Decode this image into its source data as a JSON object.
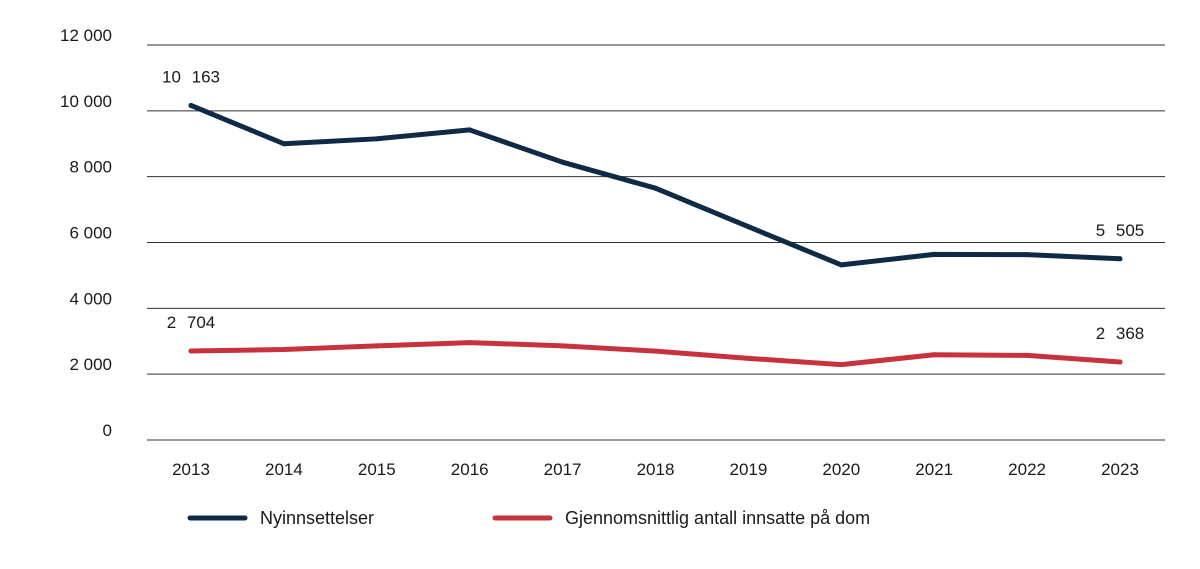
{
  "chart_data": {
    "type": "line",
    "title": "",
    "xlabel": "",
    "ylabel": "",
    "ylim": [
      0,
      12000
    ],
    "yticks": [
      0,
      2000,
      4000,
      6000,
      8000,
      10000,
      12000
    ],
    "ytick_labels": [
      "0",
      "2 000",
      "4 000",
      "6 000",
      "8 000",
      "10 000",
      "12 000"
    ],
    "grid": true,
    "categories": [
      "2013",
      "2014",
      "2015",
      "2016",
      "2017",
      "2018",
      "2019",
      "2020",
      "2021",
      "2022",
      "2023"
    ],
    "series": [
      {
        "name": "Nyinnsettelser",
        "color": "#0f2a45",
        "values": [
          10163,
          9000,
          9150,
          9420,
          8440,
          7650,
          6480,
          5320,
          5640,
          5630,
          5505
        ],
        "labels": [
          {
            "index": 0,
            "text": "10 163",
            "position": "above"
          },
          {
            "index": 10,
            "text": "5 505",
            "position": "above"
          }
        ]
      },
      {
        "name": "Gjennomsnittlig antall innsatte på dom",
        "color": "#c8323c",
        "values": [
          2704,
          2750,
          2860,
          2960,
          2860,
          2700,
          2480,
          2290,
          2590,
          2570,
          2368
        ],
        "labels": [
          {
            "index": 0,
            "text": "2 704",
            "position": "above"
          },
          {
            "index": 10,
            "text": "2 368",
            "position": "above"
          }
        ]
      }
    ],
    "legend": "bottom-left"
  }
}
